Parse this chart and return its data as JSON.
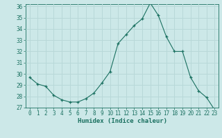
{
  "x": [
    0,
    1,
    2,
    3,
    4,
    5,
    6,
    7,
    8,
    9,
    10,
    11,
    12,
    13,
    14,
    15,
    16,
    17,
    18,
    19,
    20,
    21,
    22,
    23
  ],
  "y": [
    29.7,
    29.1,
    28.9,
    28.1,
    27.7,
    27.5,
    27.5,
    27.8,
    28.3,
    29.2,
    30.2,
    32.7,
    33.5,
    34.3,
    34.9,
    36.3,
    35.2,
    33.3,
    32.0,
    32.0,
    29.7,
    28.5,
    27.9,
    26.8
  ],
  "line_color": "#1a7060",
  "marker": "+",
  "bg_color": "#cce8e8",
  "grid_color": "#b8d8d8",
  "axis_color": "#1a7060",
  "xlabel": "Humidex (Indice chaleur)",
  "ylim": [
    27,
    36
  ],
  "xlim": [
    -0.5,
    23.5
  ],
  "yticks": [
    27,
    28,
    29,
    30,
    31,
    32,
    33,
    34,
    35,
    36
  ],
  "xticks": [
    0,
    1,
    2,
    3,
    4,
    5,
    6,
    7,
    8,
    9,
    10,
    11,
    12,
    13,
    14,
    15,
    16,
    17,
    18,
    19,
    20,
    21,
    22,
    23
  ],
  "tick_fontsize": 5.5,
  "label_fontsize": 6.5
}
